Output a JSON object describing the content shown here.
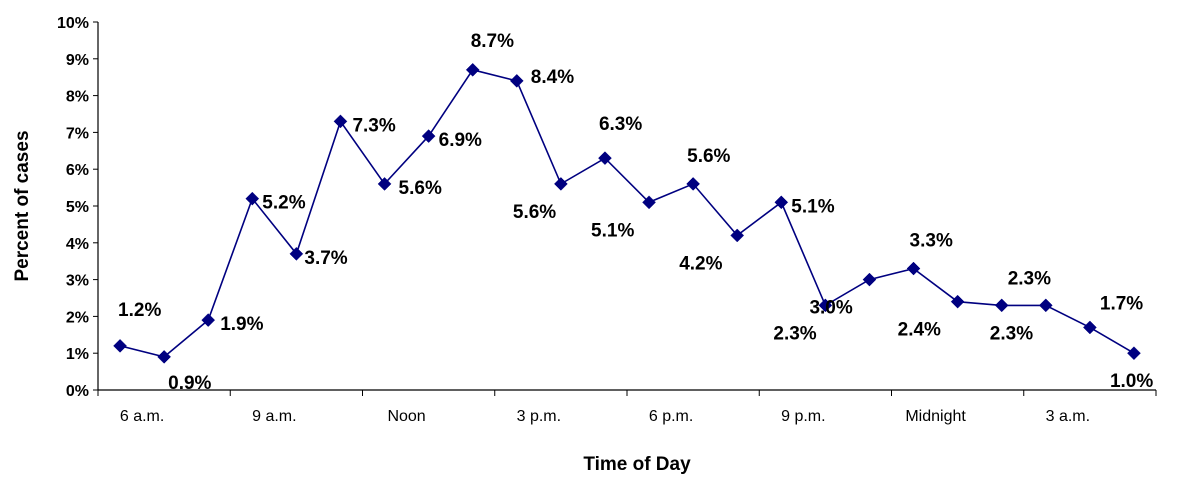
{
  "chart_data": {
    "type": "line",
    "title": "",
    "xlabel": "Time of Day",
    "ylabel": "Percent of cases",
    "ylim": [
      0,
      10
    ],
    "y_ticks": [
      "0%",
      "1%",
      "2%",
      "3%",
      "4%",
      "5%",
      "6%",
      "7%",
      "8%",
      "9%",
      "10%"
    ],
    "x_tick_labels": [
      "6 a.m.",
      "9 a.m.",
      "Noon",
      "3 p.m.",
      "6 p.m.",
      "9 p.m.",
      "Midnight",
      "3 a.m."
    ],
    "grid": false,
    "legend": "none",
    "series": [
      {
        "color": "#000080",
        "marker": "diamond",
        "values": [
          1.2,
          0.9,
          1.9,
          5.2,
          3.7,
          7.3,
          5.6,
          6.9,
          8.7,
          8.4,
          5.6,
          6.3,
          5.1,
          5.6,
          4.2,
          5.1,
          2.3,
          3.0,
          3.3,
          2.4,
          2.3,
          2.3,
          1.7,
          1.0
        ],
        "data_labels": [
          "1.2%",
          "0.9%",
          "1.9%",
          "5.2%",
          "3.7%",
          "7.3%",
          "5.6%",
          "6.9%",
          "8.7%",
          "8.4%",
          "5.6%",
          "6.3%",
          "5.1%",
          "5.6%",
          "4.2%",
          "5.1%",
          "2.3%",
          "3.0%",
          "3.3%",
          "2.4%",
          "2.3%",
          "2.3%",
          "1.7%",
          "1.0%"
        ]
      }
    ]
  }
}
